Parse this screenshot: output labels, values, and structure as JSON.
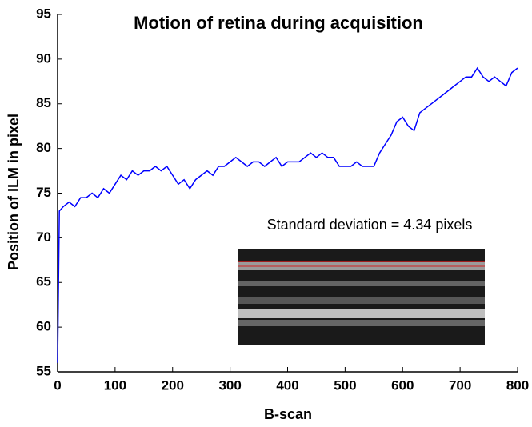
{
  "chart_data": {
    "type": "line",
    "title": "Motion of retina during acquisition",
    "x_label": "B-scan",
    "y_label": "Position of ILM in pixel",
    "annotation": "Standard deviation = 4.34 pixels",
    "color": "#0000ff",
    "x": [
      0,
      3,
      10,
      20,
      30,
      40,
      50,
      60,
      70,
      80,
      90,
      100,
      110,
      120,
      130,
      140,
      150,
      160,
      170,
      180,
      190,
      200,
      210,
      220,
      230,
      240,
      250,
      260,
      270,
      280,
      290,
      300,
      310,
      320,
      330,
      340,
      350,
      360,
      370,
      380,
      390,
      400,
      410,
      420,
      430,
      440,
      450,
      460,
      470,
      480,
      490,
      500,
      510,
      520,
      530,
      540,
      550,
      560,
      570,
      580,
      590,
      600,
      610,
      620,
      630,
      640,
      650,
      660,
      670,
      680,
      690,
      700,
      710,
      720,
      730,
      740,
      750,
      760,
      770,
      780,
      790,
      800
    ],
    "values": [
      56,
      73,
      73.5,
      74,
      73.5,
      74.5,
      74.5,
      75,
      74.5,
      75.5,
      75,
      76,
      77,
      76.5,
      77.5,
      77,
      77.5,
      77.5,
      78,
      77.5,
      78,
      77,
      76,
      76.5,
      75.5,
      76.5,
      77,
      77.5,
      77,
      78,
      78,
      78.5,
      79,
      78.5,
      78,
      78.5,
      78.5,
      78,
      78.5,
      79,
      78,
      78.5,
      78.5,
      78.5,
      79,
      79.5,
      79,
      79.5,
      79,
      79,
      78,
      78,
      78,
      78.5,
      78,
      78,
      78,
      79.5,
      80.5,
      81.5,
      83,
      83.5,
      82.5,
      82,
      84,
      84.5,
      85,
      85.5,
      86,
      86.5,
      87,
      87.5,
      88,
      88,
      89,
      88,
      87.5,
      88,
      87.5,
      87,
      88.5,
      89
    ],
    "xlim": [
      0,
      800
    ],
    "xticks": [
      0,
      100,
      200,
      300,
      400,
      500,
      600,
      700,
      800
    ],
    "ylim": [
      55,
      95
    ],
    "yticks": [
      55,
      60,
      65,
      70,
      75,
      80,
      85,
      90,
      95
    ]
  }
}
